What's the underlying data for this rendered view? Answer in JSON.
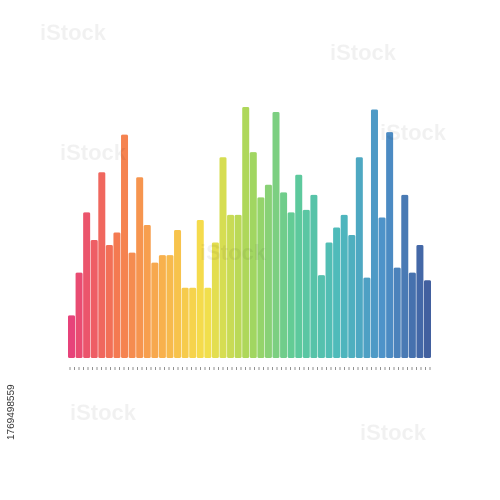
{
  "chart_data": {
    "type": "bar",
    "values": [
      17,
      34,
      58,
      47,
      74,
      45,
      50,
      89,
      42,
      72,
      53,
      38,
      41,
      41,
      51,
      28,
      28,
      55,
      28,
      46,
      80,
      57,
      57,
      100,
      82,
      64,
      69,
      98,
      66,
      58,
      73,
      59,
      65,
      33,
      46,
      52,
      57,
      49,
      80,
      32,
      99,
      56,
      90,
      36,
      65,
      34,
      45,
      31
    ],
    "ylim": [
      0,
      100
    ],
    "colors": [
      "#e42f6b",
      "#f36a3e",
      "#f7a73a",
      "#f4dd38",
      "#9ed24a",
      "#4dc58e",
      "#3bb3b4",
      "#3b86c3",
      "#2e4f95"
    ],
    "watermark": "iStock",
    "image_id": "1769498559"
  }
}
